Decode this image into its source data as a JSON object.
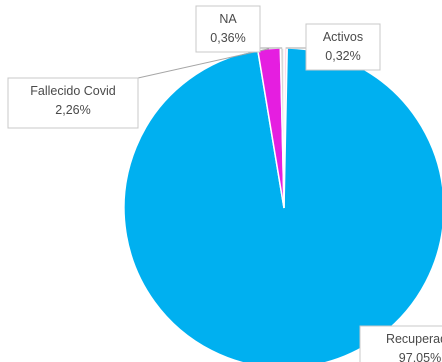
{
  "chart_data": {
    "type": "pie",
    "start_angle_deg": 0,
    "direction": "clockwise",
    "slices": [
      {
        "label": "Activos",
        "value_text": "0,32%",
        "value": 0.32,
        "color": "#ffd9ea"
      },
      {
        "label": "Recuperado",
        "value_text": "97,05%",
        "value": 97.05,
        "color": "#00b0f0"
      },
      {
        "label": "Fallecido Covid",
        "value_text": "2,26%",
        "value": 2.26,
        "color": "#e51ee0"
      },
      {
        "label": "NA",
        "value_text": "0,36%",
        "value": 0.36,
        "color": "#d8d8d8"
      }
    ]
  }
}
